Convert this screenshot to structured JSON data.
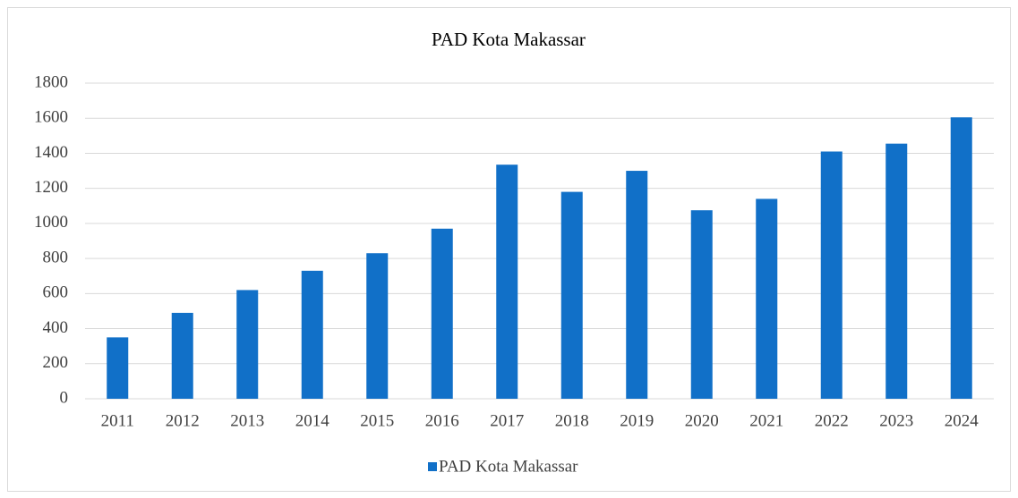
{
  "chart_data": {
    "type": "bar",
    "title": "PAD Kota Makassar",
    "categories": [
      "2011",
      "2012",
      "2013",
      "2014",
      "2015",
      "2016",
      "2017",
      "2018",
      "2019",
      "2020",
      "2021",
      "2022",
      "2023",
      "2024"
    ],
    "series": [
      {
        "name": "PAD Kota Makassar",
        "color": "#1170c8",
        "values": [
          350,
          490,
          620,
          730,
          830,
          970,
          1335,
          1180,
          1300,
          1075,
          1140,
          1410,
          1455,
          1605
        ]
      }
    ],
    "ylim": [
      0,
      1800
    ],
    "yticks": [
      0,
      200,
      400,
      600,
      800,
      1000,
      1200,
      1400,
      1600,
      1800
    ],
    "grid": true,
    "legend": "bottom"
  }
}
